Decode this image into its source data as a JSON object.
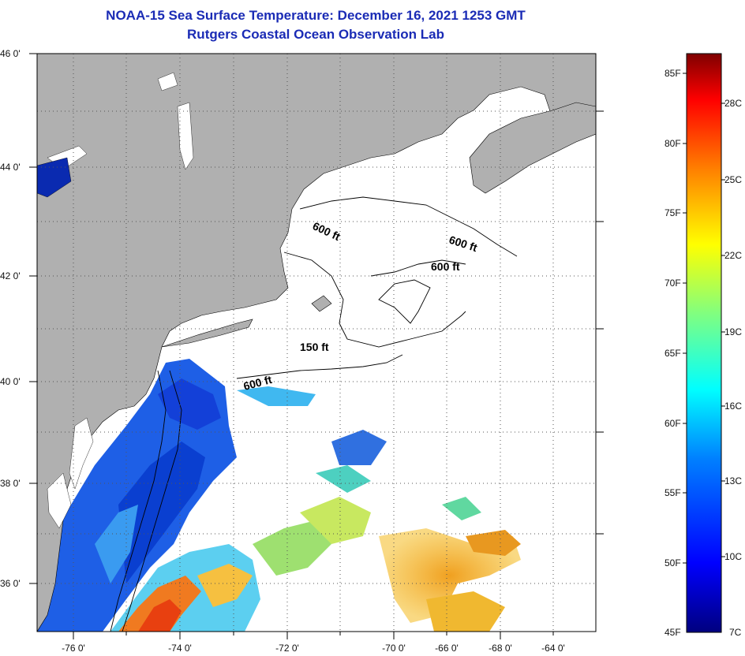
{
  "title": {
    "line1": "NOAA-15 Sea Surface Temperature:  December 16, 2021 1253 GMT",
    "line2": "Rutgers Coastal Ocean Observation Lab"
  },
  "map": {
    "lon_ticks": [
      "-76 0'",
      "-74 0'",
      "-72 0'",
      "-70 0'",
      "-68 0'",
      "-66 0'",
      "-64 0'"
    ],
    "lat_ticks": [
      "46 0'",
      "44 0'",
      "42 0'",
      "40 0'",
      "38 0'",
      "36 0'"
    ],
    "contour_labels": [
      "600 ft",
      "600 ft",
      "600 ft",
      "150 ft",
      "600 ft"
    ],
    "colors": {
      "land": "#b0b0b0",
      "ocean_nodata": "#ffffff",
      "grid": "#555555"
    }
  },
  "colorbar": {
    "fahrenheit": [
      "85F",
      "80F",
      "75F",
      "70F",
      "65F",
      "60F",
      "55F",
      "50F",
      "45F"
    ],
    "celsius": [
      "28C",
      "25C",
      "22C",
      "19C",
      "16C",
      "13C",
      "10C",
      "7C"
    ],
    "gradient_stops": [
      "#00007f",
      "#0000ff",
      "#0080ff",
      "#00ffff",
      "#80ff80",
      "#ffff00",
      "#ff8000",
      "#ff0000",
      "#7f0000"
    ]
  }
}
